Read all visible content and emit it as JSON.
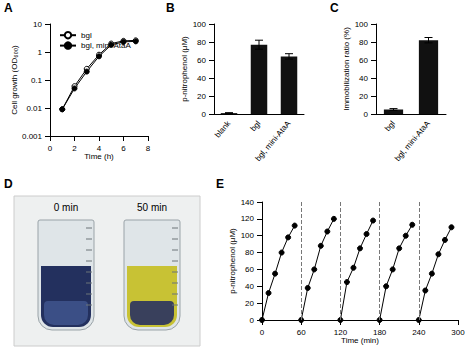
{
  "chart_data": [
    {
      "type": "line",
      "title": "A",
      "xlabel": "Time (h)",
      "ylabel": "Cell growth (OD₆₀₀)",
      "x": [
        1,
        2,
        3,
        4,
        5,
        6,
        7
      ],
      "series": [
        {
          "name": "bgl",
          "color": "#000000",
          "marker": "circle_open",
          "values": [
            0.009,
            0.06,
            0.25,
            0.8,
            2.0,
            2.5,
            2.6
          ]
        },
        {
          "name": "bgl, mini-AtaA",
          "color": "#000000",
          "marker": "circle",
          "values": [
            0.009,
            0.05,
            0.2,
            0.7,
            1.8,
            2.3,
            2.4
          ]
        }
      ],
      "xlim": [
        0,
        8
      ],
      "xticks": [
        0,
        2,
        4,
        6,
        8
      ],
      "ylim": [
        0.001,
        10
      ],
      "yticks": [
        0.001,
        0.01,
        0.1,
        1,
        10
      ],
      "log": "y",
      "grid": false,
      "legend": "upper left"
    },
    {
      "type": "bar",
      "title": "B",
      "ylabel": "p-nitrophenol (μM)",
      "categories": [
        "blank",
        "bgl",
        "bgl, mini-AtaA"
      ],
      "values": [
        1,
        77,
        64
      ],
      "errors": [
        0.5,
        5,
        3
      ],
      "color": "#111111",
      "ylim": [
        0,
        100
      ],
      "yticks": [
        0,
        20,
        40,
        60,
        80,
        100
      ],
      "grid": false
    },
    {
      "type": "bar",
      "title": "C",
      "ylabel": "Immobilization ratio (%)",
      "categories": [
        "bgl",
        "bgl, mini-AtaA"
      ],
      "values": [
        5,
        82
      ],
      "errors": [
        1,
        3
      ],
      "color": "#111111",
      "ylim": [
        0,
        100
      ],
      "yticks": [
        0,
        20,
        40,
        60,
        80,
        100
      ],
      "grid": false
    },
    {
      "type": "photo",
      "title": "D",
      "captions": [
        "0 min",
        "50 min"
      ]
    },
    {
      "type": "line",
      "title": "E",
      "xlabel": "Time (min)",
      "ylabel": "p-nitrophenol (μM)",
      "series": [
        {
          "color": "#000000",
          "marker": "circle",
          "x": [
            0,
            10,
            20,
            30,
            40,
            50
          ],
          "values": [
            0,
            32,
            55,
            80,
            98,
            112
          ]
        },
        {
          "color": "#000000",
          "marker": "circle",
          "x": [
            60,
            70,
            80,
            90,
            100,
            110
          ],
          "values": [
            0,
            38,
            60,
            88,
            105,
            120
          ]
        },
        {
          "color": "#000000",
          "marker": "circle",
          "x": [
            120,
            130,
            140,
            150,
            160,
            170
          ],
          "values": [
            0,
            45,
            62,
            85,
            102,
            118
          ]
        },
        {
          "color": "#000000",
          "marker": "circle",
          "x": [
            180,
            190,
            200,
            210,
            220,
            230
          ],
          "values": [
            0,
            40,
            60,
            85,
            100,
            113
          ]
        },
        {
          "color": "#000000",
          "marker": "circle",
          "x": [
            240,
            250,
            260,
            270,
            280,
            290
          ],
          "values": [
            0,
            35,
            55,
            78,
            95,
            110
          ]
        }
      ],
      "vlines": [
        60,
        120,
        180,
        240
      ],
      "xlim": [
        0,
        300
      ],
      "xticks": [
        0,
        60,
        120,
        180,
        240,
        300
      ],
      "ylim": [
        0,
        140
      ],
      "yticks": [
        0,
        20,
        40,
        60,
        80,
        100,
        120,
        140
      ],
      "grid": false
    }
  ]
}
